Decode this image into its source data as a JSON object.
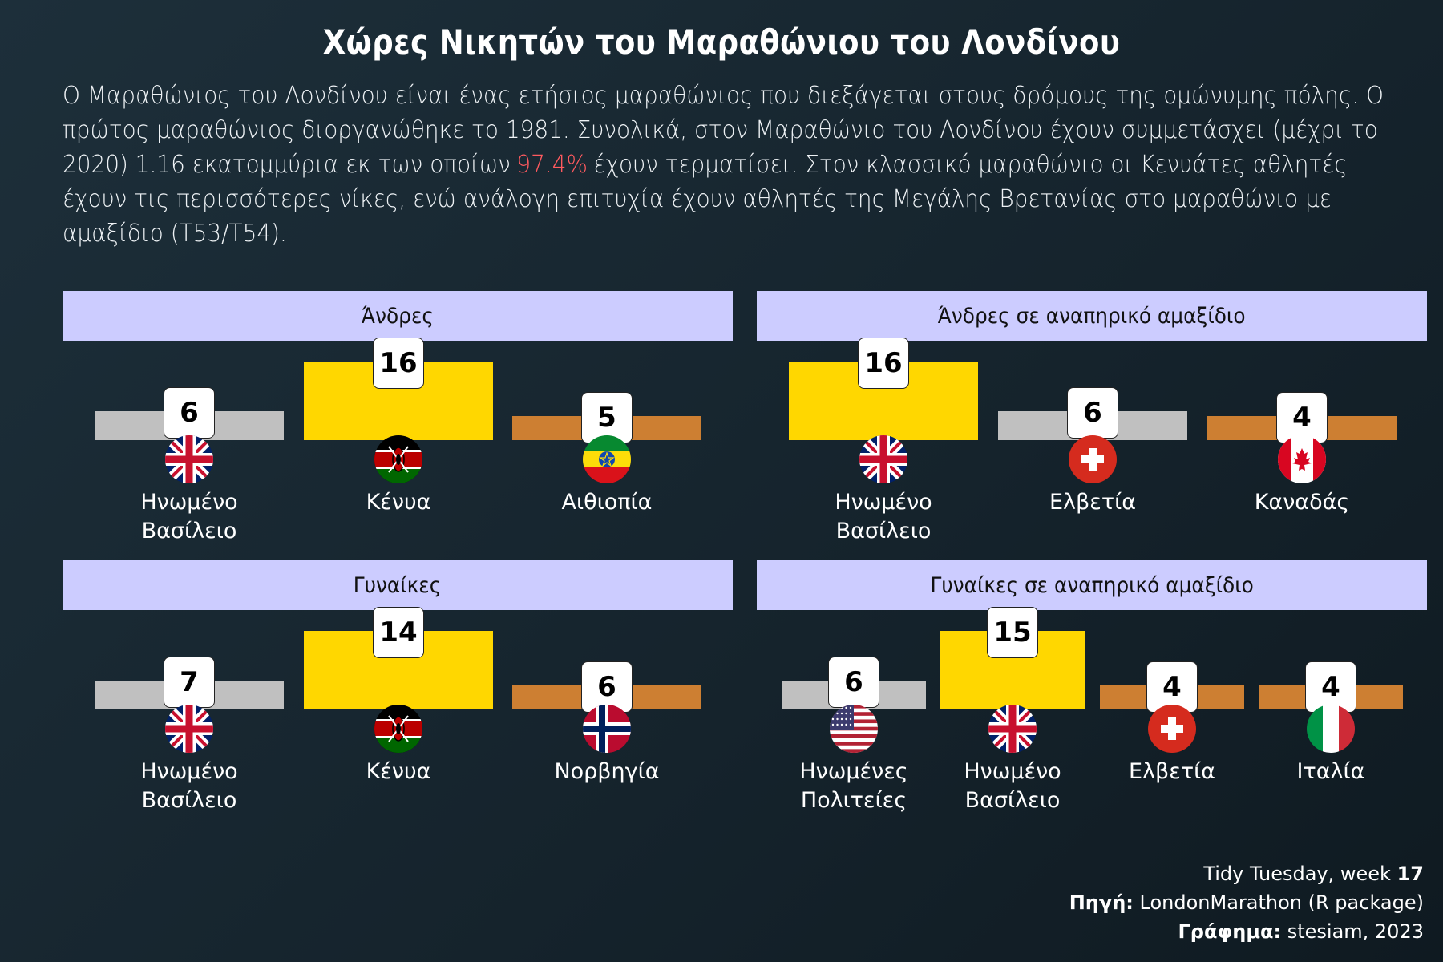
{
  "title": "Χώρες Νικητών του Μαραθώνιου του Λονδίνου",
  "subtitle": {
    "before": "Ο Μαραθώνιος του Λονδίνου είναι ένας ετήσιος μαραθώνιος που διεξάγεται στους δρόμους της ομώνυμης πόλης. Ο πρώτος μαραθώνιος διοργανώθηκε το 1981. Συνολικά, στον Μαραθώνιο του Λονδίνου έχουν συμμετάσχει (μέχρι το 2020) 1.16 εκατομμύρια εκ των οποίων",
    "highlight": "97.4%",
    "after": "έχουν τερματίσει. Στον κλασσικό μαραθώνιο οι Κενυάτες αθλητές έχουν τις περισσότερες νίκες, ενώ ανάλογη επιτυχία έχουν αθλητές της Μεγάλης Βρετανίας στο μαραθώνιο με αμαξίδιο (T53/T54)."
  },
  "colors": {
    "gold": "#ffd700",
    "silver": "#c0c0c0",
    "bronze": "#cd7f32",
    "strip": "#ccccff",
    "highlight": "#ff5a5f"
  },
  "chart_data": [
    {
      "type": "bar",
      "title": "Άνδρες",
      "categories": [
        "Ηνωμένο Βασίλειο",
        "Κένυα",
        "Αιθιοπία"
      ],
      "values": [
        6,
        16,
        5
      ],
      "medals": [
        "silver",
        "gold",
        "bronze"
      ],
      "flags": [
        "uk-flag-icon",
        "kenya-flag-icon",
        "ethiopia-flag-icon"
      ]
    },
    {
      "type": "bar",
      "title": "Άνδρες σε αναπηρικό αμαξίδιο",
      "categories": [
        "Ηνωμένο Βασίλειο",
        "Ελβετία",
        "Καναδάς"
      ],
      "values": [
        16,
        6,
        4
      ],
      "medals": [
        "gold",
        "silver",
        "bronze"
      ],
      "flags": [
        "uk-flag-icon",
        "switzerland-flag-icon",
        "canada-flag-icon"
      ]
    },
    {
      "type": "bar",
      "title": "Γυναίκες",
      "categories": [
        "Ηνωμένο Βασίλειο",
        "Κένυα",
        "Νορβηγία"
      ],
      "values": [
        7,
        14,
        6
      ],
      "medals": [
        "silver",
        "gold",
        "bronze"
      ],
      "flags": [
        "uk-flag-icon",
        "kenya-flag-icon",
        "norway-flag-icon"
      ]
    },
    {
      "type": "bar",
      "title": "Γυναίκες σε αναπηρικό αμαξίδιο",
      "categories": [
        "Ηνωμένες Πολιτείες",
        "Ηνωμένο Βασίλειο",
        "Ελβετία",
        "Ιταλία"
      ],
      "values": [
        6,
        15,
        4,
        4
      ],
      "medals": [
        "silver",
        "gold",
        "bronze",
        "bronze"
      ],
      "flags": [
        "usa-flag-icon",
        "uk-flag-icon",
        "switzerland-flag-icon",
        "italy-flag-icon"
      ]
    }
  ],
  "caption": {
    "line1_text": "Tidy Tuesday, week",
    "line1_bold": "17",
    "line2_bold": "Πηγή:",
    "line2_text": "LondonMarathon (R package)",
    "line3_bold": "Γράφημα:",
    "line3_text": "stesiam, 2023"
  }
}
